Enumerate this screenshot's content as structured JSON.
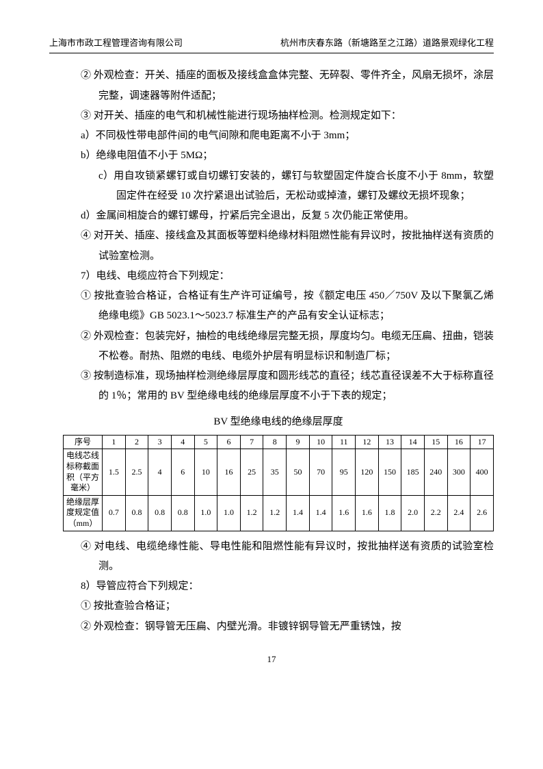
{
  "header": {
    "left": "上海市市政工程管理咨询有限公司",
    "right": "杭州市庆春东路（新塘路至之江路）道路景观绿化工程"
  },
  "paragraphs": [
    {
      "cls": "para",
      "text": "② 外观检查：开关、插座的面板及接线盒盒体完整、无碎裂、零件齐全，风扇无损坏，涂层完整，调速器等附件适配；"
    },
    {
      "cls": "para",
      "text": "③ 对开关、插座的电气和机械性能进行现场抽样检测。检测规定如下："
    },
    {
      "cls": "para-flat",
      "text": "a）不同极性带电部件间的电气间隙和爬电距离不小于 3mm；"
    },
    {
      "cls": "para-flat",
      "text": "b）绝缘电阻值不小于 5MΩ；"
    },
    {
      "cls": "para-sub",
      "text": "c）用自攻锁紧螺钉或自切螺钉安装的，螺钉与软塑固定件旋合长度不小于 8mm，软塑固定件在经受 10 次拧紧退出试验后，无松动或掉渣，螺钉及螺纹无损坏现象；"
    },
    {
      "cls": "para-flat",
      "text": "d）金属间相旋合的螺钉螺母，拧紧后完全退出，反复 5 次仍能正常使用。"
    },
    {
      "cls": "para",
      "text": "④ 对开关、插座、接线盒及其面板等塑料绝缘材料阻燃性能有异议时，按批抽样送有资质的试验室检测。"
    },
    {
      "cls": "para-flat",
      "text": "7）电线、电缆应符合下列规定："
    },
    {
      "cls": "para",
      "text": "① 按批查验合格证，合格证有生产许可证编号，按《额定电压 450／750V 及以下聚氯乙烯绝缘电缆》GB 5023.1～5023.7 标准生产的产品有安全认证标志；"
    },
    {
      "cls": "para",
      "text": "② 外观检查：包装完好，抽检的电线绝缘层完整无损，厚度均匀。电缆无压扁、扭曲，铠装不松卷。耐热、阻燃的电线、电缆外护层有明显标识和制造厂标；"
    },
    {
      "cls": "para",
      "text": "③ 按制造标准，现场抽样检测绝缘层厚度和圆形线芯的直径；线芯直径误差不大于标称直径的 1％；常用的 BV 型绝缘电线的绝缘层厚度不小于下表的规定；"
    }
  ],
  "table": {
    "title": "BV 型绝缘电线的绝缘层厚度",
    "header": {
      "label": "序号",
      "cols": [
        "1",
        "2",
        "3",
        "4",
        "5",
        "6",
        "7",
        "8",
        "9",
        "10",
        "11",
        "12",
        "13",
        "14",
        "15",
        "16",
        "17"
      ]
    },
    "rows": [
      {
        "label": "电线芯线标称截面积（平方毫米）",
        "cells": [
          "1.5",
          "2.5",
          "4",
          "6",
          "10",
          "16",
          "25",
          "35",
          "50",
          "70",
          "95",
          "120",
          "150",
          "185",
          "240",
          "300",
          "400"
        ]
      },
      {
        "label": "绝缘层厚度规定值（mm）",
        "cells": [
          "0.7",
          "0.8",
          "0.8",
          "0.8",
          "1.0",
          "1.0",
          "1.2",
          "1.2",
          "1.4",
          "1.4",
          "1.6",
          "1.6",
          "1.8",
          "2.0",
          "2.2",
          "2.4",
          "2.6"
        ]
      }
    ]
  },
  "paragraphs2": [
    {
      "cls": "para",
      "text": "④ 对电线、电缆绝缘性能、导电性能和阻燃性能有异议时，按批抽样送有资质的试验室检测。"
    },
    {
      "cls": "para-flat",
      "text": "8）导管应符合下列规定："
    },
    {
      "cls": "para",
      "text": "① 按批查验合格证；"
    },
    {
      "cls": "para",
      "text": "② 外观检查：钢导管无压扁、内壁光滑。非镀锌钢导管无严重锈蚀，按"
    }
  ],
  "page_number": "17"
}
